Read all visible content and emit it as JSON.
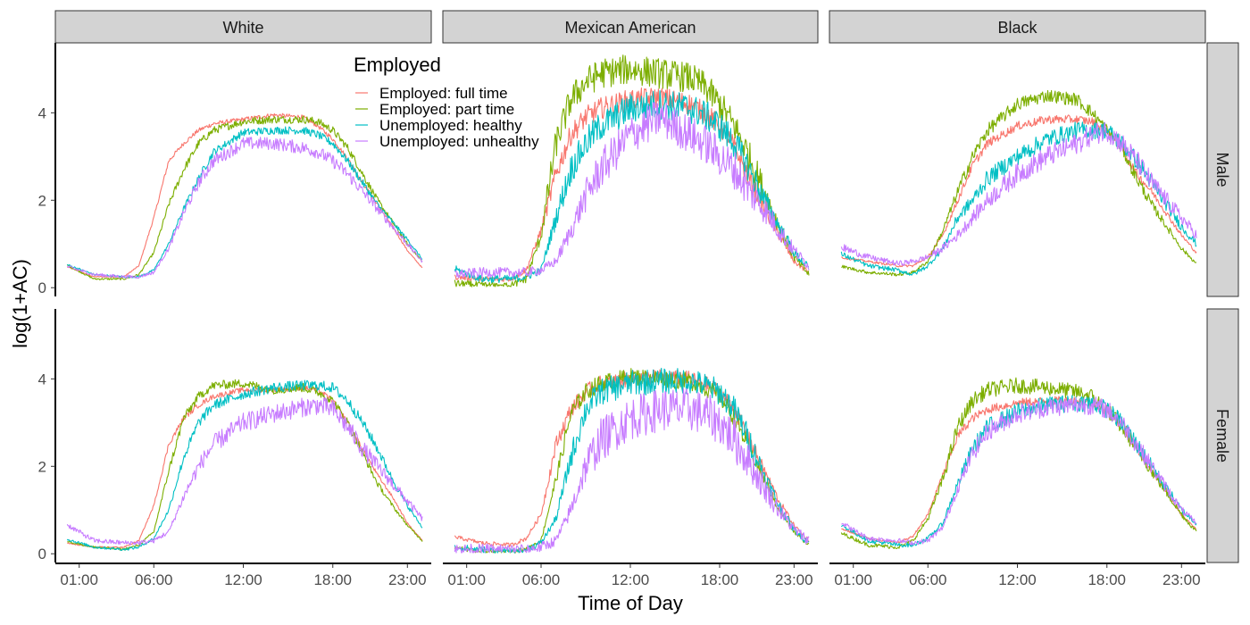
{
  "chart_data": {
    "type": "line",
    "xlabel": "Time of Day",
    "ylabel": "log(1+AC)",
    "x_ticks": [
      "01:00",
      "06:00",
      "12:00",
      "18:00",
      "23:00"
    ],
    "x_tick_hours": [
      1,
      6,
      12,
      18,
      23
    ],
    "x_range_hours": [
      0,
      24
    ],
    "y_ticks": [
      0,
      2,
      4
    ],
    "ylim": [
      -0.2,
      5.6
    ],
    "grid": false,
    "legend": {
      "title": "Employed",
      "placement": "inside-top-left",
      "entries": [
        {
          "label": "Employed: full time",
          "color": "#F8766D"
        },
        {
          "label": "Employed: part time",
          "color": "#7CAE00"
        },
        {
          "label": "Unemployed: healthy",
          "color": "#00BFC4"
        },
        {
          "label": "Unemployed: unhealthy",
          "color": "#C77CFF"
        }
      ]
    },
    "facet_columns": [
      "White",
      "Mexican American",
      "Black"
    ],
    "facet_rows": [
      "Male",
      "Female"
    ],
    "x_sample_hours": [
      0,
      2,
      4,
      5,
      6,
      7,
      8,
      9,
      10,
      12,
      14,
      16,
      17,
      18,
      19,
      20,
      21,
      22,
      23,
      24
    ],
    "noise_amplitude": [
      [
        [
          0.05,
          0.09,
          0.09,
          0.15
        ],
        [
          0.25,
          0.35,
          0.35,
          0.45
        ],
        [
          0.1,
          0.15,
          0.2,
          0.25
        ]
      ],
      [
        [
          0.06,
          0.1,
          0.12,
          0.22
        ],
        [
          0.18,
          0.2,
          0.3,
          0.5
        ],
        [
          0.1,
          0.18,
          0.2,
          0.22
        ]
      ]
    ],
    "panels": [
      [
        {
          "series": [
            {
              "name": "Employed: full time",
              "values": [
                0.5,
                0.25,
                0.25,
                0.5,
                1.6,
                2.9,
                3.3,
                3.6,
                3.75,
                3.85,
                3.95,
                3.9,
                3.7,
                3.4,
                2.95,
                2.4,
                1.9,
                1.4,
                0.85,
                0.45
              ]
            },
            {
              "name": "Employed: part time",
              "values": [
                0.55,
                0.2,
                0.2,
                0.3,
                0.8,
                1.9,
                2.7,
                3.3,
                3.6,
                3.8,
                3.85,
                3.85,
                3.8,
                3.6,
                3.2,
                2.6,
                2.0,
                1.5,
                1.0,
                0.6
              ]
            },
            {
              "name": "Unemployed: healthy",
              "values": [
                0.55,
                0.3,
                0.25,
                0.25,
                0.4,
                1.0,
                1.8,
                2.5,
                3.1,
                3.55,
                3.6,
                3.6,
                3.5,
                3.3,
                2.9,
                2.4,
                1.9,
                1.5,
                1.1,
                0.65
              ]
            },
            {
              "name": "Unemployed: unhealthy",
              "values": [
                0.5,
                0.3,
                0.25,
                0.25,
                0.35,
                0.9,
                1.7,
                2.4,
                2.9,
                3.3,
                3.3,
                3.2,
                3.1,
                2.9,
                2.6,
                2.2,
                1.8,
                1.4,
                1.0,
                0.6
              ]
            }
          ]
        },
        {
          "series": [
            {
              "name": "Employed: full time",
              "values": [
                0.25,
                0.2,
                0.2,
                0.4,
                1.3,
                2.6,
                3.5,
                3.9,
                4.1,
                4.3,
                4.35,
                4.2,
                4.0,
                3.7,
                3.2,
                2.5,
                1.8,
                1.2,
                0.6,
                0.35
              ]
            },
            {
              "name": "Employed: part time",
              "values": [
                0.1,
                0.05,
                0.05,
                0.2,
                1.2,
                3.3,
                4.3,
                4.7,
                4.9,
                5.0,
                4.9,
                4.8,
                4.6,
                4.2,
                3.7,
                3.0,
                2.2,
                1.4,
                0.7,
                0.3
              ]
            },
            {
              "name": "Unemployed: healthy",
              "values": [
                0.45,
                0.2,
                0.2,
                0.25,
                0.4,
                1.6,
                2.7,
                3.3,
                3.7,
                4.1,
                4.2,
                4.1,
                3.95,
                3.7,
                3.3,
                2.7,
                2.0,
                1.4,
                0.8,
                0.45
              ]
            },
            {
              "name": "Unemployed: unhealthy",
              "values": [
                0.3,
                0.35,
                0.35,
                0.35,
                0.4,
                0.6,
                1.3,
                2.1,
                2.7,
                3.5,
                3.9,
                3.5,
                3.3,
                3.0,
                2.7,
                2.2,
                1.8,
                1.3,
                0.85,
                0.5
              ]
            }
          ]
        },
        {
          "series": [
            {
              "name": "Employed: full time",
              "values": [
                0.7,
                0.6,
                0.5,
                0.5,
                0.7,
                1.2,
                2.0,
                2.8,
                3.3,
                3.7,
                3.85,
                3.85,
                3.8,
                3.6,
                3.2,
                2.6,
                2.2,
                1.7,
                1.2,
                0.8
              ]
            },
            {
              "name": "Employed: part time",
              "values": [
                0.5,
                0.35,
                0.3,
                0.35,
                0.6,
                1.3,
                2.2,
                3.0,
                3.6,
                4.2,
                4.4,
                4.3,
                4.0,
                3.6,
                3.2,
                2.5,
                1.9,
                1.4,
                0.9,
                0.55
              ]
            },
            {
              "name": "Unemployed: healthy",
              "values": [
                0.8,
                0.5,
                0.4,
                0.3,
                0.5,
                0.9,
                1.6,
                2.0,
                2.5,
                3.0,
                3.4,
                3.6,
                3.6,
                3.6,
                3.3,
                2.9,
                2.4,
                1.9,
                1.4,
                1.0
              ]
            },
            {
              "name": "Unemployed: unhealthy",
              "values": [
                0.95,
                0.7,
                0.55,
                0.6,
                0.7,
                0.9,
                1.2,
                1.6,
                2.0,
                2.6,
                3.0,
                3.3,
                3.5,
                3.6,
                3.3,
                2.9,
                2.4,
                2.0,
                1.6,
                1.2
              ]
            }
          ]
        }
      ],
      [
        {
          "series": [
            {
              "name": "Employed: full time",
              "values": [
                0.25,
                0.15,
                0.15,
                0.3,
                1.1,
                2.5,
                3.1,
                3.4,
                3.6,
                3.75,
                3.75,
                3.8,
                3.75,
                3.5,
                3.0,
                2.4,
                1.8,
                1.3,
                0.7,
                0.3
              ]
            },
            {
              "name": "Employed: part time",
              "values": [
                0.3,
                0.15,
                0.1,
                0.2,
                0.5,
                1.9,
                3.1,
                3.6,
                3.85,
                3.9,
                3.75,
                3.8,
                3.7,
                3.5,
                3.0,
                2.3,
                1.6,
                1.1,
                0.65,
                0.3
              ]
            },
            {
              "name": "Unemployed: healthy",
              "values": [
                0.35,
                0.15,
                0.1,
                0.15,
                0.35,
                1.0,
                2.2,
                3.0,
                3.4,
                3.65,
                3.8,
                3.85,
                3.85,
                3.8,
                3.5,
                3.0,
                2.4,
                1.7,
                1.1,
                0.6
              ]
            },
            {
              "name": "Unemployed: unhealthy",
              "values": [
                0.7,
                0.3,
                0.25,
                0.25,
                0.3,
                0.5,
                1.3,
                2.0,
                2.5,
                3.0,
                3.2,
                3.35,
                3.4,
                3.3,
                2.9,
                2.4,
                2.0,
                1.6,
                1.2,
                0.8
              ]
            }
          ]
        },
        {
          "series": [
            {
              "name": "Employed: full time",
              "values": [
                0.4,
                0.25,
                0.2,
                0.35,
                0.9,
                2.5,
                3.3,
                3.7,
                3.9,
                4.0,
                4.05,
                4.0,
                3.9,
                3.7,
                3.3,
                2.6,
                1.9,
                1.2,
                0.65,
                0.3
              ]
            },
            {
              "name": "Employed: part time",
              "values": [
                0.15,
                0.05,
                0.05,
                0.1,
                0.3,
                1.7,
                3.2,
                3.7,
                3.9,
                4.05,
                4.0,
                3.95,
                3.8,
                3.6,
                3.1,
                2.4,
                1.7,
                1.0,
                0.5,
                0.2
              ]
            },
            {
              "name": "Unemployed: healthy",
              "values": [
                0.15,
                0.1,
                0.05,
                0.1,
                0.25,
                0.8,
                2.2,
                3.3,
                3.7,
                3.9,
                3.95,
                3.95,
                3.85,
                3.7,
                3.3,
                2.6,
                1.8,
                1.1,
                0.55,
                0.25
              ]
            },
            {
              "name": "Unemployed: unhealthy",
              "values": [
                0.1,
                0.1,
                0.1,
                0.1,
                0.15,
                0.3,
                1.0,
                2.0,
                2.6,
                3.1,
                3.3,
                3.3,
                3.2,
                3.0,
                2.6,
                2.1,
                1.5,
                1.0,
                0.55,
                0.3
              ]
            }
          ]
        },
        {
          "series": [
            {
              "name": "Employed: full time",
              "values": [
                0.6,
                0.35,
                0.25,
                0.4,
                0.9,
                1.8,
                2.7,
                3.1,
                3.3,
                3.45,
                3.5,
                3.5,
                3.45,
                3.3,
                2.9,
                2.4,
                1.9,
                1.4,
                0.9,
                0.55
              ]
            },
            {
              "name": "Employed: part time",
              "values": [
                0.5,
                0.2,
                0.15,
                0.3,
                0.8,
                1.7,
                2.9,
                3.5,
                3.75,
                3.85,
                3.8,
                3.7,
                3.6,
                3.3,
                2.9,
                2.4,
                1.9,
                1.4,
                0.9,
                0.5
              ]
            },
            {
              "name": "Unemployed: healthy",
              "values": [
                0.7,
                0.3,
                0.2,
                0.2,
                0.35,
                0.7,
                1.6,
                2.4,
                2.9,
                3.25,
                3.4,
                3.45,
                3.45,
                3.3,
                3.0,
                2.5,
                2.0,
                1.5,
                1.0,
                0.7
              ]
            },
            {
              "name": "Unemployed: unhealthy",
              "values": [
                0.75,
                0.35,
                0.3,
                0.25,
                0.3,
                0.6,
                1.5,
                2.3,
                2.8,
                3.2,
                3.35,
                3.4,
                3.4,
                3.3,
                3.0,
                2.5,
                2.0,
                1.5,
                1.0,
                0.7
              ]
            }
          ]
        }
      ]
    ]
  }
}
